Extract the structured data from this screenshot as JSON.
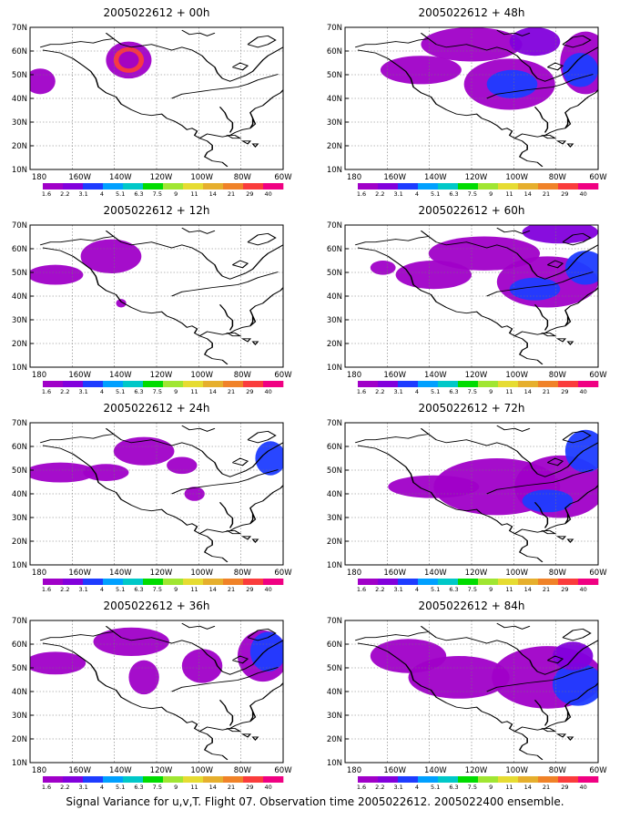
{
  "figure": {
    "caption": "Signal Variance for u,v,T. Flight 07. Observation time 2005022612. 2005022400 ensemble.",
    "y_tick_labels": [
      "10N",
      "20N",
      "30N",
      "40N",
      "50N",
      "60N",
      "70N"
    ],
    "x_tick_labels": [
      "180",
      "160W",
      "140W",
      "120W",
      "100W",
      "80W",
      "60W"
    ],
    "colorbar": {
      "labels": [
        "1.6",
        "2.2",
        "3.1",
        "4",
        "5.1",
        "6.3",
        "7.5",
        "9",
        "11",
        "14",
        "21",
        "29",
        "40"
      ],
      "colors": [
        "#a000c8",
        "#8200dc",
        "#1e3cff",
        "#00a0ff",
        "#00c8c8",
        "#00dc00",
        "#a0e632",
        "#e6dc32",
        "#e6af2d",
        "#f08228",
        "#fa3c3c",
        "#f00082"
      ]
    },
    "panels": [
      {
        "title": "2005022612 + 00h"
      },
      {
        "title": "2005022612 + 48h"
      },
      {
        "title": "2005022612 + 12h"
      },
      {
        "title": "2005022612 + 60h"
      },
      {
        "title": "2005022612 + 24h"
      },
      {
        "title": "2005022612 + 72h"
      },
      {
        "title": "2005022612 + 36h"
      },
      {
        "title": "2005022612 + 84h"
      }
    ]
  }
}
